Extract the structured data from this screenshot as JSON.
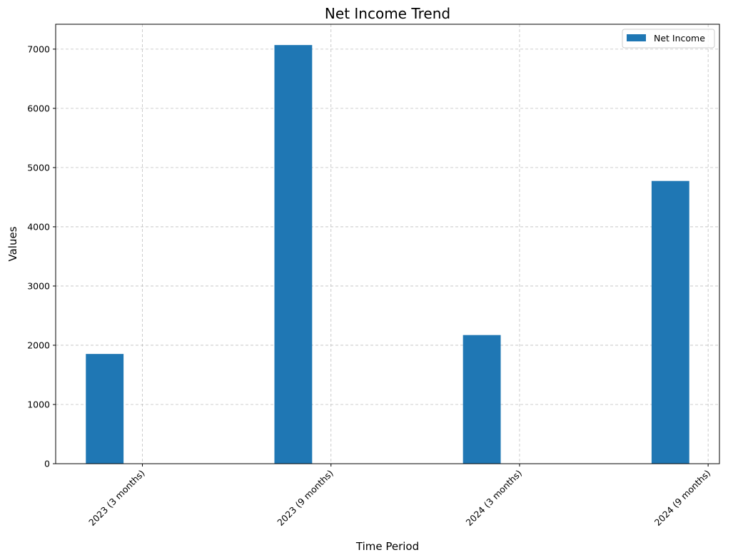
{
  "chart_data": {
    "type": "bar",
    "title": "Net Income Trend",
    "xlabel": "Time Period",
    "ylabel": "Values",
    "categories": [
      "2023 (3 months)",
      "2023 (9 months)",
      "2024 (3 months)",
      "2024 (9 months)"
    ],
    "series": [
      {
        "name": "Net Income",
        "values": [
          1853,
          7069,
          2172,
          4774
        ],
        "color": "#1f77b4"
      }
    ],
    "ylim": [
      0,
      7420
    ],
    "yticks": [
      0,
      1000,
      2000,
      3000,
      4000,
      5000,
      6000,
      7000
    ],
    "grid": true,
    "legend_position": "top-right",
    "x_tick_rotation": 45
  }
}
